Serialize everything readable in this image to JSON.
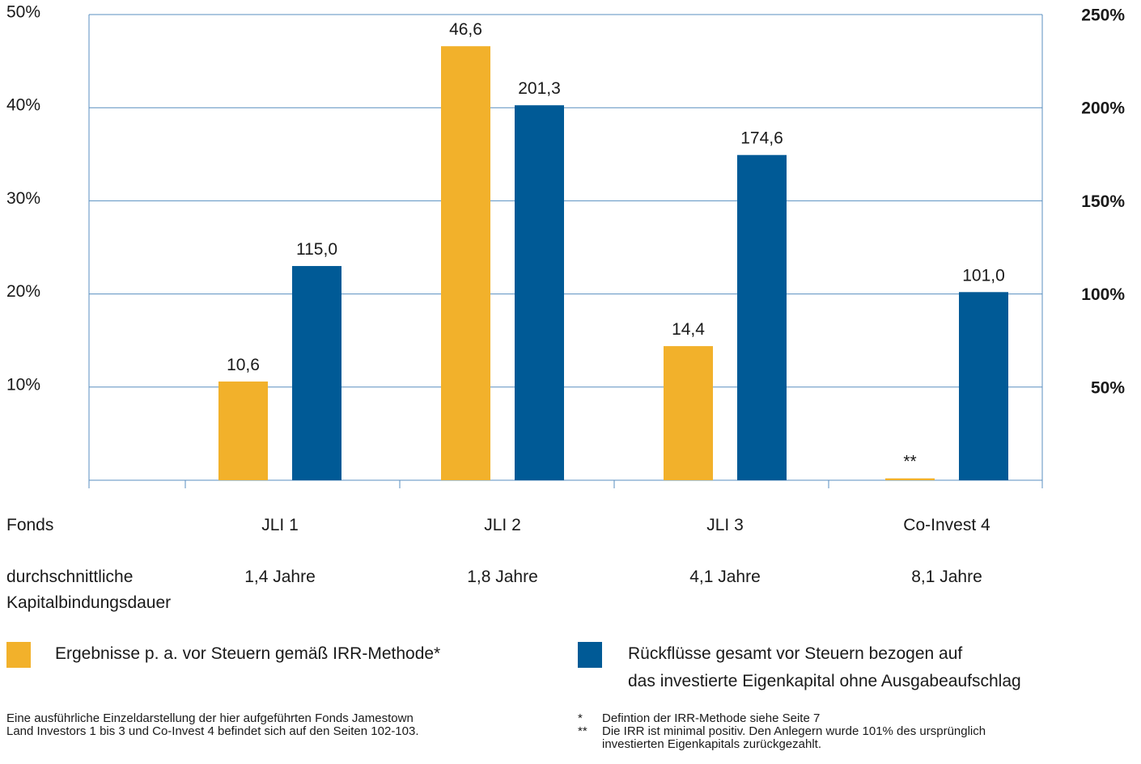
{
  "colors": {
    "irr": "#f2b12b",
    "returns": "#005a96",
    "grid": "#5a8fc0"
  },
  "chart_data": {
    "type": "bar",
    "categories": [
      "JLI 1",
      "JLI 2",
      "JLI 3",
      "Co-Invest 4"
    ],
    "left_axis": {
      "ylim": [
        0,
        50
      ],
      "ticks": [
        "10%",
        "20%",
        "30%",
        "40%",
        "50%"
      ]
    },
    "right_axis": {
      "ylim": [
        0,
        250
      ],
      "ticks": [
        "50%",
        "100%",
        "150%",
        "200%",
        "250%"
      ]
    },
    "grid": true,
    "series": [
      {
        "name": "Ergebnisse p. a. vor Steuern gemäß IRR-Methode*",
        "axis": "left",
        "values": [
          10.6,
          46.6,
          14.4,
          0.2
        ],
        "labels": [
          "10,6",
          "46,6",
          "14,4",
          "**"
        ]
      },
      {
        "name": "Rückflüsse gesamt vor Steuern bezogen auf das investierte Eigenkapital ohne Ausgabeaufschlag",
        "axis": "right",
        "values": [
          115.0,
          201.3,
          174.6,
          101.0
        ],
        "labels": [
          "115,0",
          "201,3",
          "174,6",
          "101,0"
        ]
      }
    ]
  },
  "table": {
    "fonds_label": "Fonds",
    "fonds_values": [
      "JLI 1",
      "JLI 2",
      "JLI 3",
      "Co-Invest 4"
    ],
    "dauer_label_line1": "durchschnittliche",
    "dauer_label_line2": "Kapitalbindungsdauer",
    "dauer_values": [
      "1,4 Jahre",
      "1,8 Jahre",
      "4,1 Jahre",
      "8,1 Jahre"
    ]
  },
  "legend": {
    "irr": "Ergebnisse p. a. vor Steuern gemäß IRR-Methode*",
    "returns_line1": "Rückflüsse gesamt vor Steuern bezogen auf",
    "returns_line2": "das investierte Eigenkapital ohne Ausgabeaufschlag"
  },
  "footnotes": {
    "left_line1": "Eine ausführliche Einzeldarstellung der hier aufgeführten Fonds Jamestown",
    "left_line2": "Land Investors 1 bis 3 und Co-Invest 4 befindet sich auf den Seiten 102-103.",
    "note1_mark": "*",
    "note1": "Defintion der IRR-Methode siehe Seite 7",
    "note2_mark": "**",
    "note2_line1": "Die IRR ist minimal positiv. Den Anlegern wurde 101% des ursprünglich",
    "note2_line2": "investierten Eigenkapitals zurückgezahlt."
  }
}
